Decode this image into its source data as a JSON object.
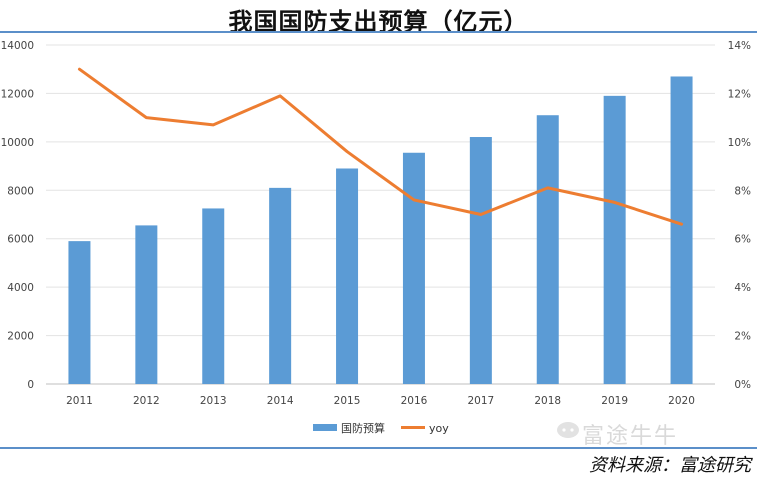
{
  "title": "我国国防支出预算（亿元）",
  "source": "资料来源：富途研究",
  "watermark": "富途牛牛",
  "watermark_icon": "chat-bubble-icon",
  "colors": {
    "bar": "#5b9bd5",
    "line": "#ed7d31",
    "rule": "#5b8fc9"
  },
  "chart_data": {
    "type": "bar",
    "title": "我国国防支出预算（亿元）",
    "categories": [
      "2011",
      "2012",
      "2013",
      "2014",
      "2015",
      "2016",
      "2017",
      "2018",
      "2019",
      "2020"
    ],
    "series": [
      {
        "name": "国防预算",
        "type": "bar",
        "axis": "left",
        "values": [
          5900,
          6550,
          7250,
          8100,
          8900,
          9550,
          10200,
          11100,
          11900,
          12700
        ]
      },
      {
        "name": "yoy",
        "type": "line",
        "axis": "right",
        "values": [
          13.0,
          11.0,
          10.7,
          11.9,
          9.6,
          7.6,
          7.0,
          8.1,
          7.5,
          6.6
        ]
      }
    ],
    "y_left": {
      "min": 0,
      "max": 14000,
      "ticks": [
        "0",
        "2000",
        "4000",
        "6000",
        "8000",
        "10000",
        "12000",
        "14000"
      ]
    },
    "y_right": {
      "min": 0,
      "max": 14,
      "ticks": [
        "0%",
        "2%",
        "4%",
        "6%",
        "8%",
        "10%",
        "12%",
        "14%"
      ]
    },
    "grid": true,
    "legend": "bottom-center"
  }
}
